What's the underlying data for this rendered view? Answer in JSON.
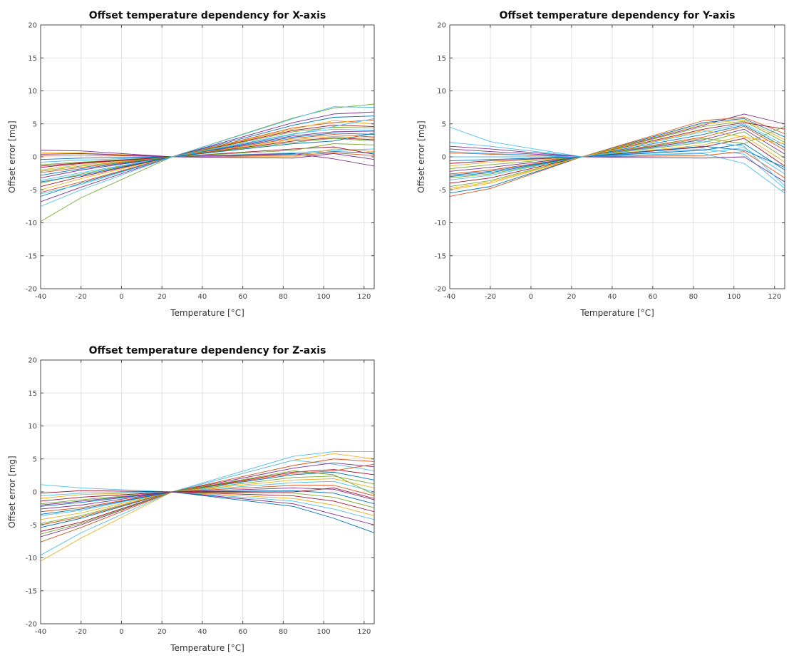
{
  "chart_data": [
    {
      "id": "x-axis",
      "type": "line",
      "title": "Offset temperature dependency for X-axis",
      "xlabel": "Temperature [°C]",
      "ylabel": "Offset error [mg]",
      "xlim": [
        -40,
        125
      ],
      "ylim": [
        -20,
        20
      ],
      "xticks": [
        -40,
        -20,
        0,
        20,
        40,
        60,
        80,
        100,
        120
      ],
      "yticks": [
        -20,
        -15,
        -10,
        -5,
        0,
        5,
        10,
        15,
        20
      ],
      "grid": true,
      "x": [
        -40,
        -20,
        25,
        85,
        105,
        125
      ],
      "series": [
        {
          "values": [
            -9.8,
            -6.2,
            0,
            5.9,
            7.4,
            8.0
          ],
          "color": "#77ac30"
        },
        {
          "values": [
            -7.5,
            -5.0,
            0,
            5.8,
            7.6,
            7.5
          ],
          "color": "#4dbeee"
        },
        {
          "values": [
            -6.8,
            -4.6,
            0,
            5.2,
            6.5,
            6.8
          ],
          "color": "#7e2f8e"
        },
        {
          "values": [
            -6.0,
            -4.0,
            0,
            4.8,
            6.0,
            6.2
          ],
          "color": "#0072bd"
        },
        {
          "values": [
            -5.4,
            -3.8,
            0,
            4.4,
            5.2,
            5.6
          ],
          "color": "#d95319"
        },
        {
          "values": [
            -5.0,
            -3.3,
            0,
            4.2,
            5.5,
            5.0
          ],
          "color": "#edb120"
        },
        {
          "values": [
            -4.5,
            -3.0,
            0,
            4.0,
            4.8,
            4.6
          ],
          "color": "#a2142f"
        },
        {
          "values": [
            -4.0,
            -2.6,
            0,
            3.8,
            4.5,
            4.4
          ],
          "color": "#77ac30"
        },
        {
          "values": [
            -3.6,
            -2.4,
            0,
            3.5,
            4.2,
            4.0
          ],
          "color": "#4dbeee"
        },
        {
          "values": [
            -3.2,
            -2.0,
            0,
            3.2,
            3.8,
            3.9
          ],
          "color": "#7e2f8e"
        },
        {
          "values": [
            -2.8,
            -1.8,
            0,
            3.0,
            3.6,
            3.4
          ],
          "color": "#0072bd"
        },
        {
          "values": [
            -2.4,
            -1.6,
            0,
            2.8,
            3.4,
            3.0
          ],
          "color": "#d95319"
        },
        {
          "values": [
            -2.0,
            -1.2,
            0,
            2.6,
            3.1,
            2.8
          ],
          "color": "#edb120"
        },
        {
          "values": [
            -1.6,
            -1.0,
            0,
            2.4,
            2.9,
            2.6
          ],
          "color": "#a2142f"
        },
        {
          "values": [
            -1.2,
            -0.8,
            0,
            2.2,
            2.8,
            2.4
          ],
          "color": "#77ac30"
        },
        {
          "values": [
            -0.8,
            -0.5,
            0,
            0.6,
            1.0,
            1.2
          ],
          "color": "#4dbeee"
        },
        {
          "values": [
            -0.4,
            -0.2,
            0,
            0.4,
            0.8,
            0.6
          ],
          "color": "#0072bd"
        },
        {
          "values": [
            0.2,
            0.3,
            0,
            0.2,
            0.6,
            0.2
          ],
          "color": "#d95319"
        },
        {
          "values": [
            0.6,
            0.6,
            0,
            0.0,
            1.2,
            0.8
          ],
          "color": "#edb120"
        },
        {
          "values": [
            1.0,
            0.9,
            0,
            -0.2,
            0.5,
            -0.4
          ],
          "color": "#7e2f8e"
        },
        {
          "values": [
            0.4,
            0.5,
            0,
            0.5,
            -0.3,
            -1.4
          ],
          "color": "#7e2f8e"
        },
        {
          "values": [
            -1.4,
            -0.9,
            0,
            1.2,
            1.5,
            0.4
          ],
          "color": "#a2142f"
        },
        {
          "values": [
            -2.2,
            -1.4,
            0,
            1.0,
            2.0,
            1.8
          ],
          "color": "#77ac30"
        },
        {
          "values": [
            -3.8,
            -2.8,
            0,
            2.0,
            2.4,
            3.6
          ],
          "color": "#0072bd"
        },
        {
          "values": [
            -5.6,
            -4.2,
            0,
            3.4,
            4.6,
            5.8
          ],
          "color": "#4dbeee"
        }
      ]
    },
    {
      "id": "y-axis",
      "type": "line",
      "title": "Offset temperature dependency for Y-axis",
      "xlabel": "Temperature [°C]",
      "ylabel": "Offset error [mg]",
      "xlim": [
        -40,
        125
      ],
      "ylim": [
        -20,
        20
      ],
      "xticks": [
        -40,
        -20,
        0,
        20,
        40,
        60,
        80,
        100,
        120
      ],
      "yticks": [
        -20,
        -15,
        -10,
        -5,
        0,
        5,
        10,
        15,
        20
      ],
      "grid": true,
      "x": [
        -40,
        -20,
        25,
        85,
        105,
        125
      ],
      "series": [
        {
          "values": [
            4.5,
            2.3,
            0,
            0.5,
            -1.0,
            -5.5
          ],
          "color": "#4dbeee"
        },
        {
          "values": [
            2.2,
            1.6,
            0,
            1.2,
            0.4,
            -4.8
          ],
          "color": "#4dbeee"
        },
        {
          "values": [
            1.2,
            0.8,
            0,
            4.8,
            6.5,
            5.0
          ],
          "color": "#7e2f8e"
        },
        {
          "values": [
            -6.0,
            -4.8,
            0,
            5.5,
            6.0,
            3.5
          ],
          "color": "#d95319"
        },
        {
          "values": [
            -5.5,
            -4.5,
            0,
            5.2,
            5.8,
            3.0
          ],
          "color": "#0072bd"
        },
        {
          "values": [
            -5.0,
            -4.0,
            0,
            5.0,
            5.6,
            2.6
          ],
          "color": "#edb120"
        },
        {
          "values": [
            -4.5,
            -3.6,
            0,
            4.6,
            5.4,
            2.2
          ],
          "color": "#77ac30"
        },
        {
          "values": [
            -4.0,
            -3.2,
            0,
            4.2,
            5.2,
            4.2
          ],
          "color": "#a2142f"
        },
        {
          "values": [
            -3.5,
            -2.8,
            0,
            3.8,
            5.0,
            1.8
          ],
          "color": "#4dbeee"
        },
        {
          "values": [
            -3.0,
            -2.4,
            0,
            3.4,
            4.8,
            1.4
          ],
          "color": "#0072bd"
        },
        {
          "values": [
            -2.6,
            -2.0,
            0,
            3.0,
            4.6,
            1.0
          ],
          "color": "#d95319"
        },
        {
          "values": [
            -2.2,
            -1.6,
            0,
            2.6,
            4.2,
            0.4
          ],
          "color": "#7e2f8e"
        },
        {
          "values": [
            -1.8,
            -1.2,
            0,
            2.2,
            3.8,
            -0.2
          ],
          "color": "#77ac30"
        },
        {
          "values": [
            -1.4,
            -0.8,
            0,
            1.8,
            3.2,
            -0.8
          ],
          "color": "#edb120"
        },
        {
          "values": [
            -1.0,
            -0.6,
            0,
            1.5,
            2.8,
            -1.4
          ],
          "color": "#a2142f"
        },
        {
          "values": [
            -0.6,
            -0.4,
            0,
            1.0,
            2.0,
            -2.0
          ],
          "color": "#0072bd"
        },
        {
          "values": [
            0.0,
            0.0,
            0,
            0.6,
            1.4,
            -2.6
          ],
          "color": "#4dbeee"
        },
        {
          "values": [
            0.6,
            0.4,
            0,
            0.2,
            0.8,
            -3.2
          ],
          "color": "#d95319"
        },
        {
          "values": [
            1.6,
            1.2,
            0,
            -0.2,
            0.0,
            -3.8
          ],
          "color": "#7e2f8e"
        },
        {
          "values": [
            -3.2,
            -2.6,
            0,
            2.8,
            2.0,
            4.6
          ],
          "color": "#77ac30"
        },
        {
          "values": [
            -4.8,
            -3.8,
            0,
            4.0,
            3.0,
            2.0
          ],
          "color": "#edb120"
        },
        {
          "values": [
            -2.8,
            -2.2,
            0,
            1.6,
            1.0,
            -1.6
          ],
          "color": "#0072bd"
        },
        {
          "values": [
            0.8,
            0.5,
            0,
            2.4,
            1.6,
            -4.4
          ],
          "color": "#4dbeee"
        }
      ]
    },
    {
      "id": "z-axis",
      "type": "line",
      "title": "Offset temperature dependency for Z-axis",
      "xlabel": "Temperature [°C]",
      "ylabel": "Offset error [mg]",
      "xlim": [
        -40,
        125
      ],
      "ylim": [
        -20,
        20
      ],
      "xticks": [
        -40,
        -20,
        0,
        20,
        40,
        60,
        80,
        100,
        120
      ],
      "yticks": [
        -20,
        -15,
        -10,
        -5,
        0,
        5,
        10,
        15,
        20
      ],
      "grid": true,
      "x": [
        -40,
        -20,
        25,
        85,
        105,
        125
      ],
      "series": [
        {
          "values": [
            -10.5,
            -7.0,
            0,
            4.8,
            5.8,
            5.0
          ],
          "color": "#edb120"
        },
        {
          "values": [
            -9.6,
            -6.2,
            0,
            5.4,
            6.1,
            6.1
          ],
          "color": "#4dbeee"
        },
        {
          "values": [
            1.1,
            0.6,
            0,
            4.8,
            4.2,
            3.2
          ],
          "color": "#4dbeee"
        },
        {
          "values": [
            -7.6,
            -5.4,
            0,
            4.0,
            5.0,
            4.6
          ],
          "color": "#d95319"
        },
        {
          "values": [
            -6.8,
            -5.0,
            0,
            3.6,
            4.4,
            3.8
          ],
          "color": "#7e2f8e"
        },
        {
          "values": [
            -6.0,
            -4.6,
            0,
            3.0,
            3.4,
            2.6
          ],
          "color": "#a2142f"
        },
        {
          "values": [
            -5.4,
            -4.0,
            0,
            2.6,
            3.0,
            1.8
          ],
          "color": "#0072bd"
        },
        {
          "values": [
            -4.8,
            -3.6,
            0,
            2.2,
            2.4,
            1.2
          ],
          "color": "#77ac30"
        },
        {
          "values": [
            -4.2,
            -3.2,
            0,
            1.8,
            2.0,
            0.6
          ],
          "color": "#edb120"
        },
        {
          "values": [
            -3.6,
            -2.8,
            0,
            1.4,
            1.6,
            0.0
          ],
          "color": "#4dbeee"
        },
        {
          "values": [
            -3.0,
            -2.4,
            0,
            1.0,
            1.0,
            -0.6
          ],
          "color": "#d95319"
        },
        {
          "values": [
            -2.6,
            -2.0,
            0,
            0.6,
            0.4,
            -1.2
          ],
          "color": "#7e2f8e"
        },
        {
          "values": [
            -2.2,
            -1.6,
            0,
            0.2,
            -0.2,
            -1.8
          ],
          "color": "#0072bd"
        },
        {
          "values": [
            -1.8,
            -1.2,
            0,
            -0.2,
            -0.8,
            -2.4
          ],
          "color": "#77ac30"
        },
        {
          "values": [
            -1.4,
            -0.8,
            0,
            -0.6,
            -1.4,
            -3.0
          ],
          "color": "#a2142f"
        },
        {
          "values": [
            -1.0,
            -0.4,
            0,
            -1.0,
            -2.0,
            -3.6
          ],
          "color": "#edb120"
        },
        {
          "values": [
            -0.6,
            -0.2,
            0,
            -1.4,
            -2.6,
            -4.2
          ],
          "color": "#4dbeee"
        },
        {
          "values": [
            -2.0,
            -1.4,
            0,
            -1.8,
            -3.4,
            -5.0
          ],
          "color": "#7e2f8e"
        },
        {
          "values": [
            -3.4,
            -2.6,
            0,
            -2.2,
            -4.0,
            -6.2
          ],
          "color": "#0072bd"
        },
        {
          "values": [
            -5.0,
            -3.8,
            0,
            2.8,
            3.2,
            4.2
          ],
          "color": "#d95319"
        },
        {
          "values": [
            -6.4,
            -4.8,
            0,
            3.2,
            2.6,
            -0.4
          ],
          "color": "#77ac30"
        },
        {
          "values": [
            -0.2,
            0.2,
            0,
            0.0,
            0.6,
            -1.0
          ],
          "color": "#a2142f"
        }
      ]
    }
  ]
}
